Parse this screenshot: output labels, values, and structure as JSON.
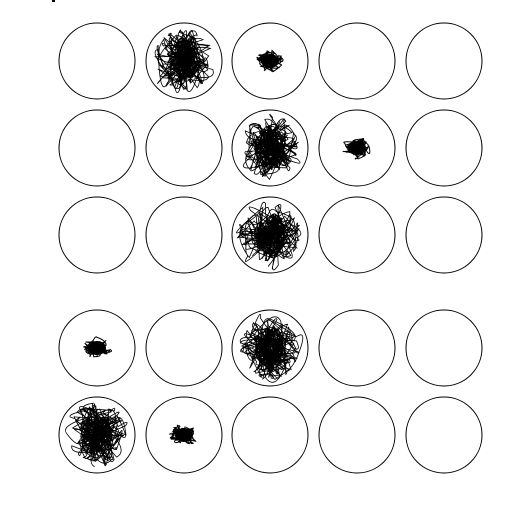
{
  "grid": {
    "rows": 5,
    "cols": 5,
    "cells": [
      [
        "empty",
        "large",
        "small",
        "empty",
        "empty"
      ],
      [
        "empty",
        "empty",
        "large",
        "small",
        "empty"
      ],
      [
        "empty",
        "empty",
        "large",
        "empty",
        "empty"
      ],
      [
        "small",
        "empty",
        "large",
        "empty",
        "empty"
      ],
      [
        "large",
        "small",
        "empty",
        "empty",
        "empty"
      ]
    ]
  },
  "colors": {
    "background": "#ffffff",
    "outline": "#000000",
    "scribble": "#000000"
  }
}
